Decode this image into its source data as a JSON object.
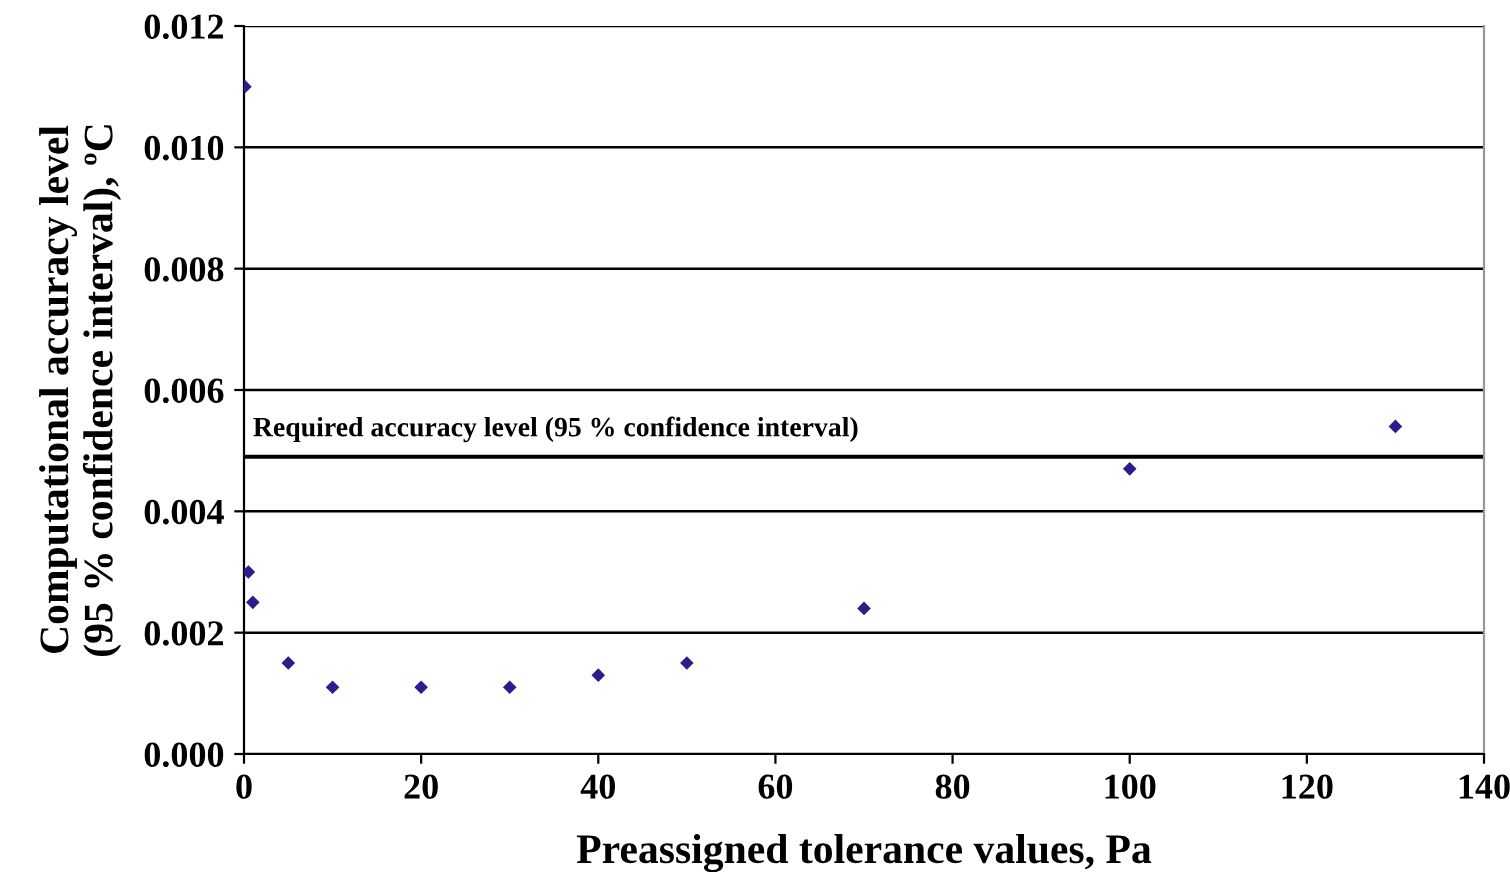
{
  "chart_data": {
    "type": "scatter",
    "xlabel": "Preassigned tolerance values, Pa",
    "ylabel": "Computational accuracy level\n(95 % confidence interval), ºC",
    "x": [
      0.1,
      0.5,
      1,
      5,
      10,
      20,
      30,
      40,
      50,
      70,
      100,
      130
    ],
    "values": [
      0.011,
      0.003,
      0.0025,
      0.0015,
      0.0011,
      0.0011,
      0.0011,
      0.0013,
      0.0015,
      0.0024,
      0.0047,
      0.0054
    ],
    "color": "#2b1d8c",
    "marker": "diamond",
    "xlim": [
      0,
      140
    ],
    "xticks": [
      0,
      20,
      40,
      60,
      80,
      100,
      120,
      140
    ],
    "ylim": [
      0,
      0.012
    ],
    "yticks": [
      {
        "value": 0,
        "label": "0.000"
      },
      {
        "value": 0.002,
        "label": "0.002"
      },
      {
        "value": 0.004,
        "label": "0.004"
      },
      {
        "value": 0.006,
        "label": "0.006"
      },
      {
        "value": 0.008,
        "label": "0.008"
      },
      {
        "value": 0.01,
        "label": "0.010"
      },
      {
        "value": 0.012,
        "label": "0.012"
      }
    ],
    "grid": "y",
    "ref_lines": [
      {
        "axis": "y",
        "value": 0.0049,
        "label": "Required accuracy level (95 % confidence interval)",
        "color": "#000000"
      }
    ]
  }
}
